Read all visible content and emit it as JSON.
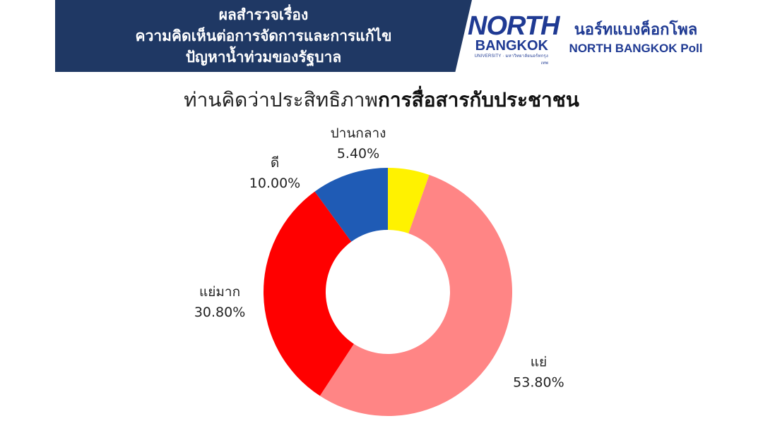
{
  "header": {
    "lines": [
      "ผลสำรวจเรื่อง",
      "ความคิดเห็นต่อการจัดการและการแก้ไข",
      "ปัญหาน้ำท่วมของรัฐบาล"
    ],
    "logo_north": "NORTH",
    "logo_bangkok": "BANGKOK",
    "logo_university": "UNIVERSITY · มหาวิทยาลัยนอร์ทกรุงเทพ",
    "poll_thai": "นอร์ทแบงค็อกโพล",
    "poll_english": "NORTH BANGKOK Poll",
    "banner_color": "#1f3864",
    "brand_color": "#1f3a93"
  },
  "question": {
    "prefix": "ท่านคิดว่าประสิทธิภาพ",
    "bold": "การสื่อสารกับประชาชน"
  },
  "chart_data": {
    "type": "pie",
    "donut": true,
    "title": "ท่านคิดว่าประสิทธิภาพการสื่อสารกับประชาชน",
    "legend": "none",
    "slices": [
      {
        "label": "ปานกลาง",
        "value": 5.4,
        "display": "5.40%",
        "color": "#fff200"
      },
      {
        "label": "แย่",
        "value": 53.8,
        "display": "53.80%",
        "color": "#ff8585"
      },
      {
        "label": "แย่มาก",
        "value": 30.8,
        "display": "30.80%",
        "color": "#ff0000"
      },
      {
        "label": "ดี",
        "value": 10.0,
        "display": "10.00%",
        "color": "#1f5bb5"
      }
    ]
  }
}
